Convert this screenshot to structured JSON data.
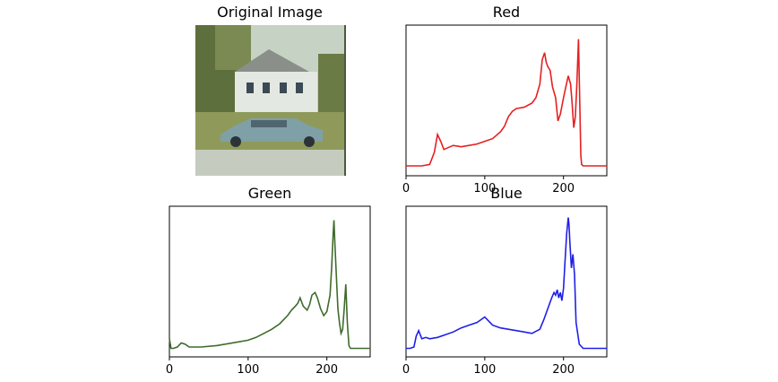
{
  "chart_data": [
    {
      "type": "image",
      "title": "Original Image",
      "image_description_icon": "house-with-car-photo"
    },
    {
      "type": "line",
      "title": "Red",
      "color": "#e62020",
      "xlim": [
        0,
        255
      ],
      "xticks": [
        "0",
        "100",
        "200"
      ],
      "x": [
        0,
        10,
        20,
        30,
        36,
        40,
        44,
        48,
        52,
        56,
        60,
        70,
        80,
        90,
        100,
        110,
        120,
        125,
        130,
        135,
        140,
        150,
        160,
        165,
        170,
        173,
        176,
        178,
        180,
        183,
        186,
        190,
        193,
        196,
        200,
        203,
        206,
        209,
        211,
        213,
        215,
        217,
        219,
        221,
        222,
        223,
        225,
        230,
        240,
        255
      ],
      "y": [
        0.02,
        0.02,
        0.02,
        0.03,
        0.12,
        0.25,
        0.2,
        0.14,
        0.15,
        0.16,
        0.17,
        0.16,
        0.17,
        0.18,
        0.2,
        0.22,
        0.27,
        0.31,
        0.38,
        0.42,
        0.44,
        0.45,
        0.48,
        0.52,
        0.62,
        0.8,
        0.85,
        0.78,
        0.75,
        0.72,
        0.6,
        0.52,
        0.35,
        0.4,
        0.52,
        0.6,
        0.68,
        0.62,
        0.48,
        0.3,
        0.38,
        0.62,
        0.95,
        0.4,
        0.1,
        0.03,
        0.02,
        0.02,
        0.02,
        0.02
      ]
    },
    {
      "type": "line",
      "title": "Green",
      "color": "#3f6b2c",
      "xlim": [
        0,
        255
      ],
      "xticks": [
        "0",
        "100",
        "200"
      ],
      "x": [
        0,
        2,
        5,
        10,
        15,
        20,
        25,
        30,
        40,
        60,
        80,
        100,
        110,
        120,
        130,
        140,
        150,
        155,
        160,
        163,
        166,
        170,
        175,
        178,
        181,
        185,
        188,
        192,
        196,
        200,
        204,
        206,
        208,
        209,
        210,
        212,
        214,
        216,
        218,
        220,
        222,
        224,
        226,
        228,
        230,
        240,
        255
      ],
      "y": [
        0.08,
        0.01,
        0.01,
        0.02,
        0.05,
        0.04,
        0.02,
        0.02,
        0.02,
        0.03,
        0.05,
        0.07,
        0.09,
        0.12,
        0.15,
        0.19,
        0.25,
        0.29,
        0.32,
        0.34,
        0.38,
        0.32,
        0.29,
        0.33,
        0.4,
        0.42,
        0.38,
        0.3,
        0.25,
        0.28,
        0.4,
        0.6,
        0.85,
        0.95,
        0.8,
        0.55,
        0.3,
        0.2,
        0.12,
        0.15,
        0.3,
        0.48,
        0.2,
        0.03,
        0.01,
        0.01,
        0.01
      ]
    },
    {
      "type": "line",
      "title": "Blue",
      "color": "#2020e6",
      "xlim": [
        0,
        255
      ],
      "xticks": [
        "0",
        "100",
        "200"
      ],
      "x": [
        0,
        5,
        10,
        13,
        16,
        20,
        25,
        30,
        40,
        50,
        60,
        70,
        80,
        90,
        95,
        100,
        105,
        110,
        120,
        130,
        140,
        150,
        160,
        170,
        175,
        180,
        185,
        188,
        190,
        192,
        194,
        196,
        198,
        200,
        202,
        204,
        206,
        207,
        208,
        210,
        212,
        214,
        216,
        220,
        225,
        230,
        240,
        255
      ],
      "y": [
        0.01,
        0.01,
        0.02,
        0.1,
        0.14,
        0.08,
        0.09,
        0.08,
        0.09,
        0.11,
        0.13,
        0.16,
        0.18,
        0.2,
        0.22,
        0.24,
        0.21,
        0.18,
        0.16,
        0.15,
        0.14,
        0.13,
        0.12,
        0.15,
        0.22,
        0.3,
        0.38,
        0.42,
        0.4,
        0.44,
        0.38,
        0.42,
        0.36,
        0.45,
        0.65,
        0.85,
        0.97,
        0.92,
        0.8,
        0.6,
        0.7,
        0.55,
        0.2,
        0.04,
        0.01,
        0.01,
        0.01,
        0.01
      ]
    }
  ]
}
